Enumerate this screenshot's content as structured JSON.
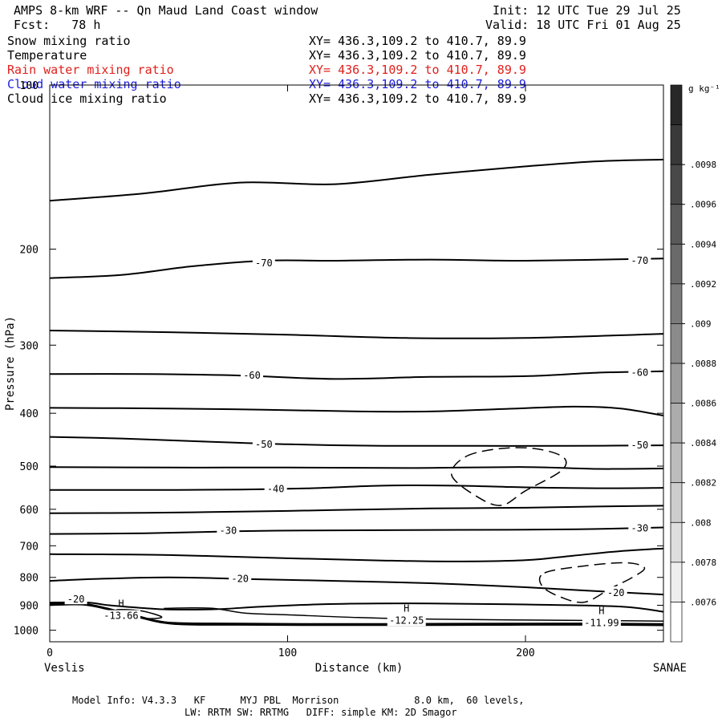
{
  "header": {
    "title": "AMPS 8-km WRF -- Qn Maud Land Coast window",
    "fcst": "Fcst:   78 h",
    "init": "Init: 12 UTC Tue 29 Jul 25",
    "valid": "Valid: 18 UTC Fri 01 Aug 25"
  },
  "variables": [
    {
      "name": "Snow mixing ratio",
      "xy": "XY= 436.3,109.2 to 410.7, 89.9",
      "color": "#000000"
    },
    {
      "name": "Temperature",
      "xy": "XY= 436.3,109.2 to 410.7, 89.9",
      "color": "#000000"
    },
    {
      "name": "Rain water mixing ratio",
      "xy": "XY= 436.3,109.2 to 410.7, 89.9",
      "color": "#e0201c"
    },
    {
      "name": "Cloud water mixing ratio",
      "xy": "XY= 436.3,109.2 to 410.7, 89.9",
      "color": "#1c1ce0"
    },
    {
      "name": "Cloud ice mixing ratio",
      "xy": "XY= 436.3,109.2 to 410.7, 89.9",
      "color": "#000000"
    }
  ],
  "footer": {
    "line1": "Model Info: V4.3.3   KF      MYJ PBL  Morrison             8.0 km,  60 levels,",
    "line2": "LW: RRTM SW: RRTMG   DIFF: simple KM: 2D Smagor"
  },
  "chart_data": {
    "type": "contour",
    "xlabel": "Distance (km)",
    "ylabel": "Pressure (hPa)",
    "xlim": [
      0,
      258
    ],
    "ylim": [
      1050,
      100
    ],
    "yscale": "log",
    "x_ticks": [
      0,
      100,
      200
    ],
    "y_ticks": [
      100,
      200,
      300,
      400,
      500,
      600,
      700,
      800,
      900,
      1000
    ],
    "left_end_label": "Veslis",
    "right_end_label": "SANAE",
    "colorbar": {
      "unit": "g kg⁻¹",
      "ticks": [
        ".0076",
        ".0078",
        ".008",
        ".0082",
        ".0084",
        ".0086",
        ".0088",
        ".009",
        ".0092",
        ".0094",
        ".0096",
        ".0098"
      ]
    },
    "temperature_contours": [
      {
        "level": -75,
        "points": [
          [
            0,
            163
          ],
          [
            40,
            158
          ],
          [
            80,
            151
          ],
          [
            120,
            152
          ],
          [
            160,
            146
          ],
          [
            200,
            141
          ],
          [
            230,
            138
          ],
          [
            258,
            137
          ]
        ]
      },
      {
        "level": -70,
        "points": [
          [
            0,
            226
          ],
          [
            30,
            223
          ],
          [
            60,
            215
          ],
          [
            90,
            210
          ],
          [
            120,
            210
          ],
          [
            160,
            209
          ],
          [
            200,
            210
          ],
          [
            258,
            208
          ]
        ]
      },
      {
        "level": -65,
        "points": [
          [
            0,
            282
          ],
          [
            50,
            284
          ],
          [
            100,
            287
          ],
          [
            150,
            291
          ],
          [
            200,
            291
          ],
          [
            258,
            286
          ]
        ]
      },
      {
        "level": -60,
        "points": [
          [
            0,
            339
          ],
          [
            40,
            339
          ],
          [
            80,
            341
          ],
          [
            120,
            346
          ],
          [
            160,
            343
          ],
          [
            200,
            342
          ],
          [
            230,
            337
          ],
          [
            258,
            335
          ]
        ]
      },
      {
        "level": -55,
        "points": [
          [
            0,
            391
          ],
          [
            50,
            392
          ],
          [
            90,
            394
          ],
          [
            130,
            397
          ],
          [
            160,
            397
          ],
          [
            190,
            393
          ],
          [
            220,
            389
          ],
          [
            240,
            392
          ],
          [
            258,
            404
          ]
        ]
      },
      {
        "level": -50,
        "points": [
          [
            0,
            442
          ],
          [
            30,
            445
          ],
          [
            60,
            450
          ],
          [
            100,
            456
          ],
          [
            140,
            459
          ],
          [
            180,
            459
          ],
          [
            220,
            459
          ],
          [
            258,
            458
          ]
        ]
      },
      {
        "level": -45,
        "points": [
          [
            0,
            502
          ],
          [
            50,
            503
          ],
          [
            100,
            503
          ],
          [
            150,
            504
          ],
          [
            200,
            502
          ],
          [
            230,
            506
          ],
          [
            258,
            505
          ]
        ]
      },
      {
        "level": -40,
        "points": [
          [
            0,
            553
          ],
          [
            40,
            553
          ],
          [
            80,
            552
          ],
          [
            110,
            549
          ],
          [
            140,
            543
          ],
          [
            170,
            543
          ],
          [
            200,
            547
          ],
          [
            230,
            549
          ],
          [
            258,
            548
          ]
        ]
      },
      {
        "level": -35,
        "points": [
          [
            0,
            610
          ],
          [
            40,
            609
          ],
          [
            80,
            606
          ],
          [
            120,
            602
          ],
          [
            160,
            598
          ],
          [
            200,
            596
          ],
          [
            230,
            593
          ],
          [
            258,
            591
          ]
        ]
      },
      {
        "level": -30,
        "points": [
          [
            0,
            666
          ],
          [
            40,
            664
          ],
          [
            80,
            658
          ],
          [
            110,
            656
          ],
          [
            150,
            655
          ],
          [
            200,
            654
          ],
          [
            230,
            652
          ],
          [
            258,
            648
          ]
        ]
      },
      {
        "level": -25,
        "points": [
          [
            0,
            725
          ],
          [
            50,
            728
          ],
          [
            100,
            738
          ],
          [
            140,
            745
          ],
          [
            170,
            748
          ],
          [
            200,
            744
          ],
          [
            220,
            730
          ],
          [
            240,
            716
          ],
          [
            258,
            708
          ]
        ]
      },
      {
        "level": -20,
        "points": [
          [
            0,
            812
          ],
          [
            20,
            805
          ],
          [
            50,
            800
          ],
          [
            80,
            805
          ],
          [
            120,
            812
          ],
          [
            160,
            820
          ],
          [
            200,
            834
          ],
          [
            230,
            848
          ],
          [
            258,
            860
          ]
        ]
      },
      {
        "level": -15,
        "points": [
          [
            0,
            890
          ],
          [
            15,
            889
          ],
          [
            25,
            900
          ],
          [
            40,
            911
          ],
          [
            50,
            916
          ],
          [
            70,
            915
          ],
          [
            90,
            905
          ],
          [
            120,
            895
          ],
          [
            160,
            893
          ],
          [
            200,
            897
          ],
          [
            240,
            905
          ],
          [
            258,
            925
          ]
        ]
      }
    ],
    "temperature_labels": [
      {
        "text": "-70",
        "x": 90,
        "p": 212
      },
      {
        "text": "-70",
        "x": 248,
        "p": 210
      },
      {
        "text": "-60",
        "x": 85,
        "p": 341
      },
      {
        "text": "-60",
        "x": 248,
        "p": 337
      },
      {
        "text": "-50",
        "x": 90,
        "p": 456
      },
      {
        "text": "-50",
        "x": 248,
        "p": 458
      },
      {
        "text": "-40",
        "x": 95,
        "p": 551
      },
      {
        "text": "-30",
        "x": 75,
        "p": 657
      },
      {
        "text": "-30",
        "x": 248,
        "p": 650
      },
      {
        "text": "-20",
        "x": 80,
        "p": 805
      },
      {
        "text": "-20",
        "x": 238,
        "p": 854
      },
      {
        "text": "-20",
        "x": 11,
        "p": 878
      }
    ],
    "cloud_ice_contours": [
      {
        "points": [
          [
            175,
            480
          ],
          [
            190,
            464
          ],
          [
            205,
            465
          ],
          [
            216,
            482
          ],
          [
            215,
            510
          ],
          [
            200,
            555
          ],
          [
            190,
            590
          ],
          [
            180,
            570
          ],
          [
            169,
            520
          ]
        ]
      },
      {
        "points": [
          [
            208,
            785
          ],
          [
            225,
            762
          ],
          [
            242,
            752
          ],
          [
            250,
            768
          ],
          [
            245,
            800
          ],
          [
            236,
            837
          ],
          [
            225,
            888
          ],
          [
            215,
            870
          ],
          [
            207,
            830
          ]
        ]
      }
    ],
    "surface_highs": [
      {
        "label": "H",
        "value": "-13.66",
        "x": 30,
        "p": 925
      },
      {
        "label": "H",
        "value": "-12.25",
        "x": 150,
        "p": 943
      },
      {
        "label": "H",
        "value": "-11.99",
        "x": 232,
        "p": 953
      }
    ]
  }
}
